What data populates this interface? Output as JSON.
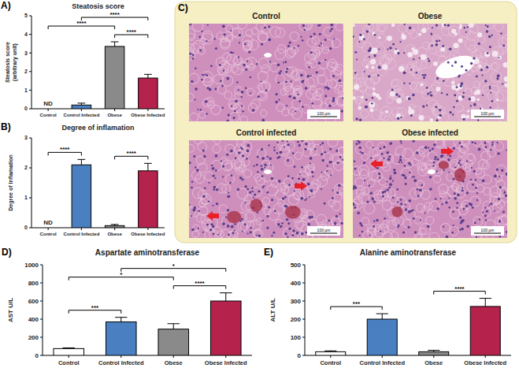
{
  "chart_data": [
    {
      "type": "bar",
      "title": "Steatosis score",
      "y_label": [
        "Steatosis score",
        "(arbitrary unit)"
      ],
      "categories": [
        "Control",
        "Control Infected",
        "Obese",
        "Obese Infected"
      ],
      "values": [
        null,
        0.2,
        3.35,
        1.65
      ],
      "errors": [
        null,
        0.1,
        0.25,
        0.2
      ],
      "colors": [
        "#ffffff",
        "#4a7fc1",
        "#8a8a8a",
        "#b5224c"
      ],
      "ylim": [
        0,
        5
      ],
      "yticks": [
        0,
        1,
        2,
        3,
        4,
        5
      ],
      "annotations": [
        {
          "text": "A)"
        },
        {
          "text": "ND",
          "category": "Control"
        }
      ],
      "significance": [
        {
          "pair": [
            "Control",
            "Obese"
          ],
          "label": "****"
        },
        {
          "pair": [
            "Control Infected",
            "Obese Infected"
          ],
          "label": "****"
        },
        {
          "pair": [
            "Obese",
            "Obese Infected"
          ],
          "label": "****"
        }
      ]
    },
    {
      "type": "bar",
      "title": "Degree of inflamation",
      "y_label": [
        "Degree of Inflamation"
      ],
      "categories": [
        "Control",
        "Control Infected",
        "Obese",
        "Obese Infected"
      ],
      "values": [
        null,
        2.1,
        0.07,
        1.9
      ],
      "errors": [
        null,
        0.18,
        0.04,
        0.25
      ],
      "colors": [
        "#ffffff",
        "#4a7fc1",
        "#8a8a8a",
        "#b5224c"
      ],
      "ylim": [
        0,
        3
      ],
      "yticks": [
        0,
        1,
        2,
        3
      ],
      "annotations": [
        {
          "text": "B)"
        },
        {
          "text": "ND",
          "category": "Control"
        }
      ],
      "significance": [
        {
          "pair": [
            "Control",
            "Control Infected"
          ],
          "label": "****"
        },
        {
          "pair": [
            "Obese",
            "Obese Infected"
          ],
          "label": "****"
        }
      ]
    },
    {
      "type": "bar",
      "title": "Aspartate aminotransferase",
      "y_label": [
        "AST U/L"
      ],
      "categories": [
        "Control",
        "Control Infected",
        "Obese",
        "Obese Infected"
      ],
      "values": [
        75,
        370,
        290,
        600
      ],
      "errors": [
        8,
        50,
        60,
        90
      ],
      "colors": [
        "#ffffff",
        "#4a7fc1",
        "#8a8a8a",
        "#b5224c"
      ],
      "ylim": [
        0,
        1000
      ],
      "yticks": [
        0,
        200,
        400,
        600,
        800,
        1000
      ],
      "annotations": [
        {
          "text": "D)"
        }
      ],
      "significance": [
        {
          "pair": [
            "Control",
            "Control Infected"
          ],
          "label": "***"
        },
        {
          "pair": [
            "Obese",
            "Obese Infected"
          ],
          "label": "****"
        },
        {
          "pair": [
            "Control",
            "Obese"
          ],
          "label": "*"
        },
        {
          "pair": [
            "Control Infected",
            "Obese Infected"
          ],
          "label": "*"
        }
      ]
    },
    {
      "type": "bar",
      "title": "Alanine aminotransferase",
      "y_label": [
        "ALT U/L"
      ],
      "categories": [
        "Control",
        "Control Infected",
        "Obese",
        "Obese Infected"
      ],
      "values": [
        20,
        200,
        20,
        270
      ],
      "errors": [
        5,
        30,
        8,
        45
      ],
      "colors": [
        "#ffffff",
        "#4a7fc1",
        "#8a8a8a",
        "#b5224c"
      ],
      "ylim": [
        0,
        500
      ],
      "yticks": [
        0,
        100,
        200,
        300,
        400,
        500
      ],
      "annotations": [
        {
          "text": "E)"
        }
      ],
      "significance": [
        {
          "pair": [
            "Control",
            "Control Infected"
          ],
          "label": "***"
        },
        {
          "pair": [
            "Obese",
            "Obese Infected"
          ],
          "label": "****"
        }
      ]
    }
  ],
  "micrographs": {
    "label": "C)",
    "panels": [
      {
        "title": "Control",
        "scale_bar": "100 µm"
      },
      {
        "title": "Obese",
        "scale_bar": "100 µm"
      },
      {
        "title": "Control infected",
        "scale_bar": "100 µm"
      },
      {
        "title": "Obese infected",
        "scale_bar": "100 µm"
      }
    ]
  }
}
